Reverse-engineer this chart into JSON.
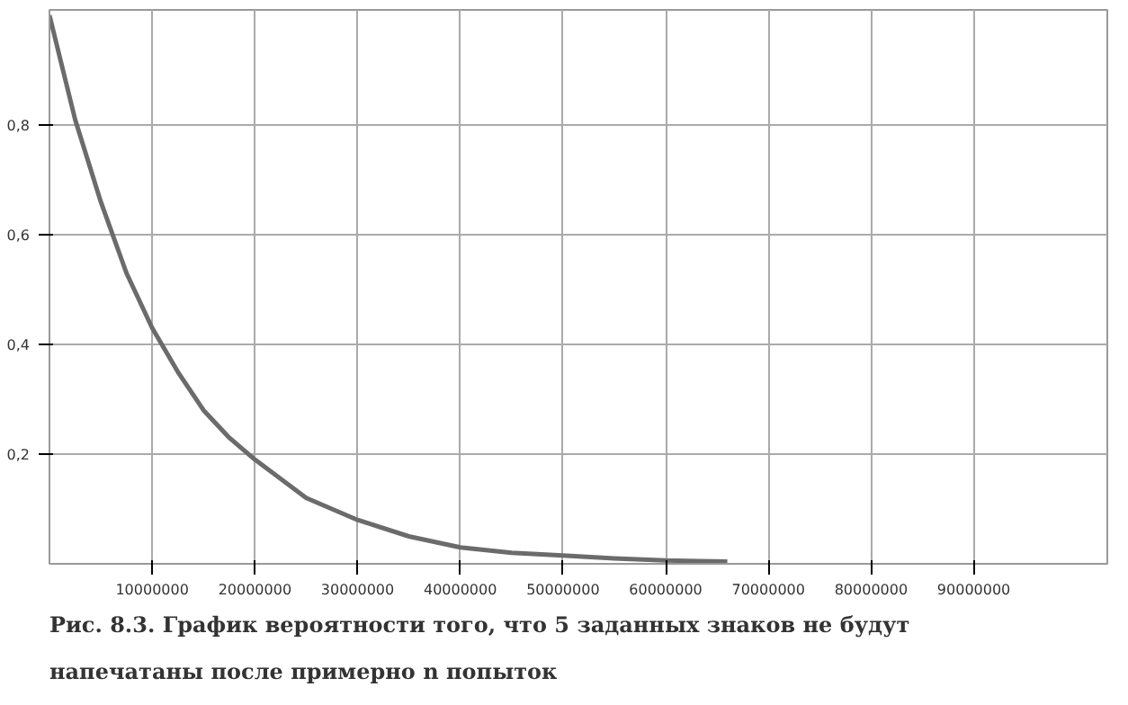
{
  "chart_data": {
    "type": "line",
    "title": "Рис. 8.3. График вероятности того, что 5 заданных знаков не будут напечатаны после примерно n попыток",
    "x": [
      0,
      2500000,
      5000000,
      7500000,
      10000000,
      12500000,
      15000000,
      17500000,
      20000000,
      25000000,
      30000000,
      35000000,
      40000000,
      45000000,
      50000000,
      55000000,
      60000000,
      66000000
    ],
    "series": [
      {
        "color": "#6b6b6b",
        "values": [
          1.0,
          0.81,
          0.66,
          0.53,
          0.43,
          0.35,
          0.28,
          0.23,
          0.19,
          0.12,
          0.08,
          0.05,
          0.03,
          0.02,
          0.015,
          0.01,
          0.006,
          0.004
        ]
      }
    ],
    "xlim": [
      0,
      103000000
    ],
    "ylim": [
      0,
      1.01
    ],
    "xticks": [
      10000000,
      20000000,
      30000000,
      40000000,
      50000000,
      60000000,
      70000000,
      80000000,
      90000000
    ],
    "yticks": [
      {
        "value": 0.2,
        "label": "0,2"
      },
      {
        "value": 0.4,
        "label": "0,4"
      },
      {
        "value": 0.6,
        "label": "0,6"
      },
      {
        "value": 0.8,
        "label": "0,8"
      }
    ],
    "grid": true,
    "marker": "none",
    "line_style": "solid"
  }
}
